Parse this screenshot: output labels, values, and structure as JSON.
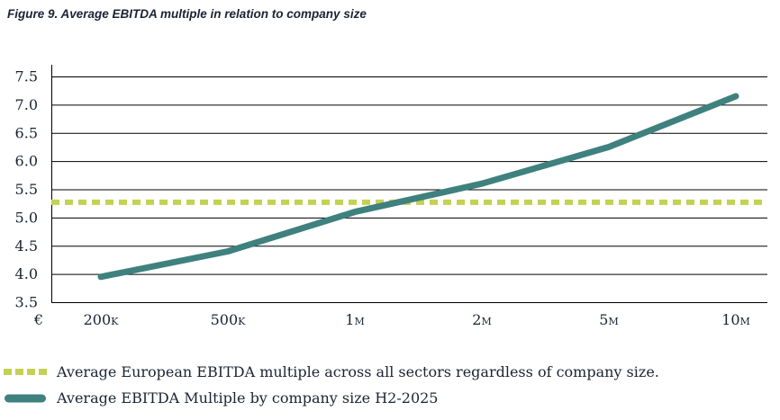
{
  "title": "Figure 9. Average EBITDA multiple in relation to company size",
  "chart_data": {
    "type": "line",
    "title": "Figure 9. Average EBITDA multiple in relation to company size",
    "x_axis": {
      "currency_symbol": "€",
      "categories": [
        "200K",
        "500K",
        "1M",
        "2M",
        "5M",
        "10M"
      ]
    },
    "y_axis": {
      "min": 3.5,
      "max": 7.5,
      "step": 0.5
    },
    "grid": "horizontal",
    "legend_position": "bottom",
    "series": [
      {
        "name": "Average EBITDA Multiple by company size H2-2025",
        "style": "solid",
        "color": "#3E817E",
        "values": [
          3.95,
          4.4,
          5.1,
          5.6,
          6.25,
          7.15
        ]
      },
      {
        "name": "Average European EBITDA multiple across all sectors regardless of company size.",
        "style": "dashed",
        "color": "#C4D152",
        "constant_value": 5.27
      }
    ]
  },
  "legend": [
    {
      "label": "Average European EBITDA multiple across all sectors regardless of company size.",
      "swatch": "dashed-chartreuse"
    },
    {
      "label": "Average EBITDA Multiple by company size H2-2025",
      "swatch": "solid-teal"
    }
  ],
  "colors": {
    "teal": "#3E817E",
    "chartreuse": "#C4D152",
    "text": "#1B2433",
    "grid": "#000000"
  }
}
